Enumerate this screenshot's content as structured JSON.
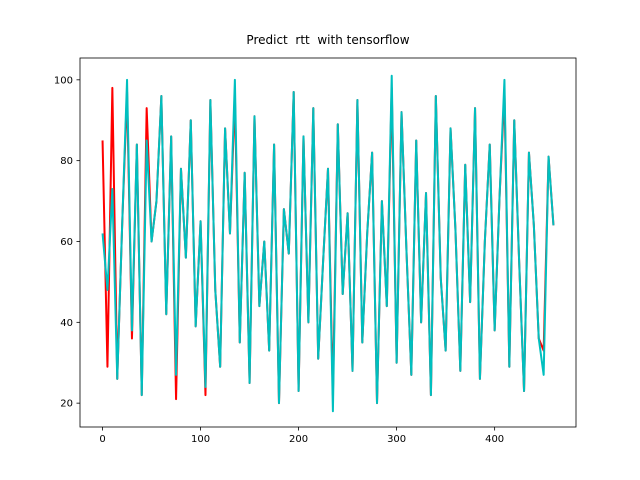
{
  "chart_data": {
    "type": "line",
    "title": "Predict  rtt  with tensorflow",
    "x": [
      0,
      5,
      10,
      15,
      20,
      25,
      30,
      35,
      40,
      45,
      50,
      55,
      60,
      65,
      70,
      75,
      80,
      85,
      90,
      95,
      100,
      105,
      110,
      115,
      120,
      125,
      130,
      135,
      140,
      145,
      150,
      155,
      160,
      165,
      170,
      175,
      180,
      185,
      190,
      195,
      200,
      205,
      210,
      215,
      220,
      225,
      230,
      235,
      240,
      245,
      250,
      255,
      260,
      265,
      270,
      275,
      280,
      285,
      290,
      295,
      300,
      305,
      310,
      315,
      320,
      325,
      330,
      335,
      340,
      345,
      350,
      355,
      360,
      365,
      370,
      375,
      380,
      385,
      390,
      395,
      400,
      405,
      410,
      415,
      420,
      425,
      430,
      435,
      440,
      445,
      450,
      455,
      460
    ],
    "series": [
      {
        "color": "#ff0000",
        "values": [
          85,
          29,
          98,
          26,
          64,
          97,
          36,
          84,
          22,
          93,
          60,
          70,
          96,
          42,
          86,
          21,
          78,
          56,
          90,
          39,
          65,
          22,
          95,
          48,
          29,
          88,
          62,
          96,
          35,
          77,
          25,
          91,
          44,
          60,
          33,
          84,
          20,
          68,
          57,
          97,
          23,
          86,
          40,
          93,
          31,
          55,
          78,
          22,
          89,
          47,
          67,
          28,
          95,
          35,
          62,
          82,
          20,
          70,
          44,
          98,
          30,
          92,
          58,
          27,
          85,
          40,
          72,
          22,
          96,
          51,
          33,
          88,
          63,
          28,
          79,
          45,
          93,
          26,
          60,
          84,
          38,
          71,
          97,
          29,
          90,
          55,
          23,
          82,
          64,
          36,
          33,
          81,
          64
        ]
      },
      {
        "color": "#00bfbf",
        "values": [
          62,
          48,
          73,
          26,
          64,
          100,
          38,
          84,
          22,
          85,
          60,
          70,
          96,
          42,
          86,
          27,
          78,
          56,
          90,
          39,
          65,
          24,
          95,
          48,
          29,
          88,
          62,
          100,
          35,
          77,
          25,
          91,
          44,
          60,
          33,
          84,
          20,
          68,
          57,
          97,
          23,
          86,
          40,
          93,
          31,
          55,
          78,
          18,
          89,
          47,
          67,
          28,
          95,
          35,
          62,
          82,
          20,
          70,
          44,
          101,
          30,
          92,
          58,
          27,
          85,
          40,
          72,
          22,
          96,
          51,
          33,
          88,
          63,
          28,
          79,
          45,
          93,
          26,
          60,
          84,
          38,
          71,
          100,
          29,
          90,
          55,
          23,
          82,
          64,
          36,
          27,
          81,
          64
        ]
      }
    ],
    "xlim": [
      -23,
      483
    ],
    "ylim": [
      14.1,
      105.4
    ],
    "xticks": [
      0,
      100,
      200,
      300,
      400
    ],
    "yticks": [
      20,
      40,
      60,
      80,
      100
    ]
  }
}
